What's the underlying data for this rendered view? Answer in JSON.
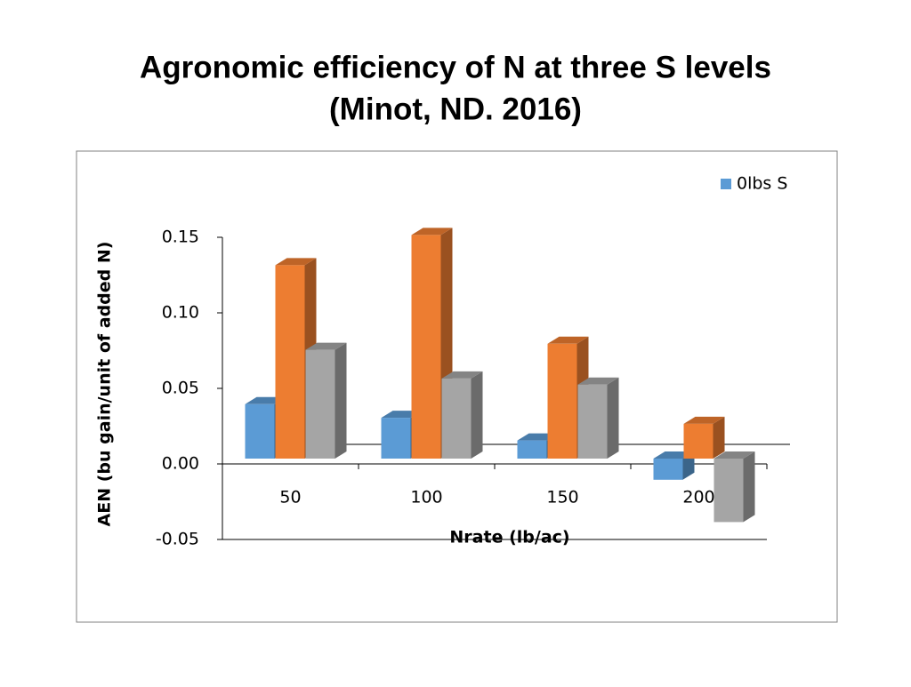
{
  "chart_data": {
    "type": "bar3d",
    "title": [
      "Agronomic efficiency of N at three S levels",
      "(Minot, ND. 2016)"
    ],
    "x_label": "Nrate (lb/ac)",
    "y_label": "AEN (bu gain/unit of added N)",
    "categories": [
      "50",
      "100",
      "150",
      "200"
    ],
    "series": [
      {
        "name": "0lbs S",
        "color": "#5b9bd5",
        "values": [
          0.036,
          0.027,
          0.012,
          -0.014
        ]
      },
      {
        "color": "#ed7d31",
        "values": [
          0.128,
          0.148,
          0.076,
          0.023
        ]
      },
      {
        "color": "#a5a5a5",
        "values": [
          0.072,
          0.053,
          0.049,
          -0.042
        ]
      }
    ],
    "ylim": [
      -0.05,
      0.15
    ],
    "yticks": [
      {
        "value": -0.05,
        "label": "-0.05"
      },
      {
        "value": 0,
        "label": "0.00"
      },
      {
        "value": 0.05,
        "label": "0.05"
      },
      {
        "value": 0.1,
        "label": "0.10"
      },
      {
        "value": 0.15,
        "label": "0.15"
      }
    ],
    "legend": "top-right"
  }
}
